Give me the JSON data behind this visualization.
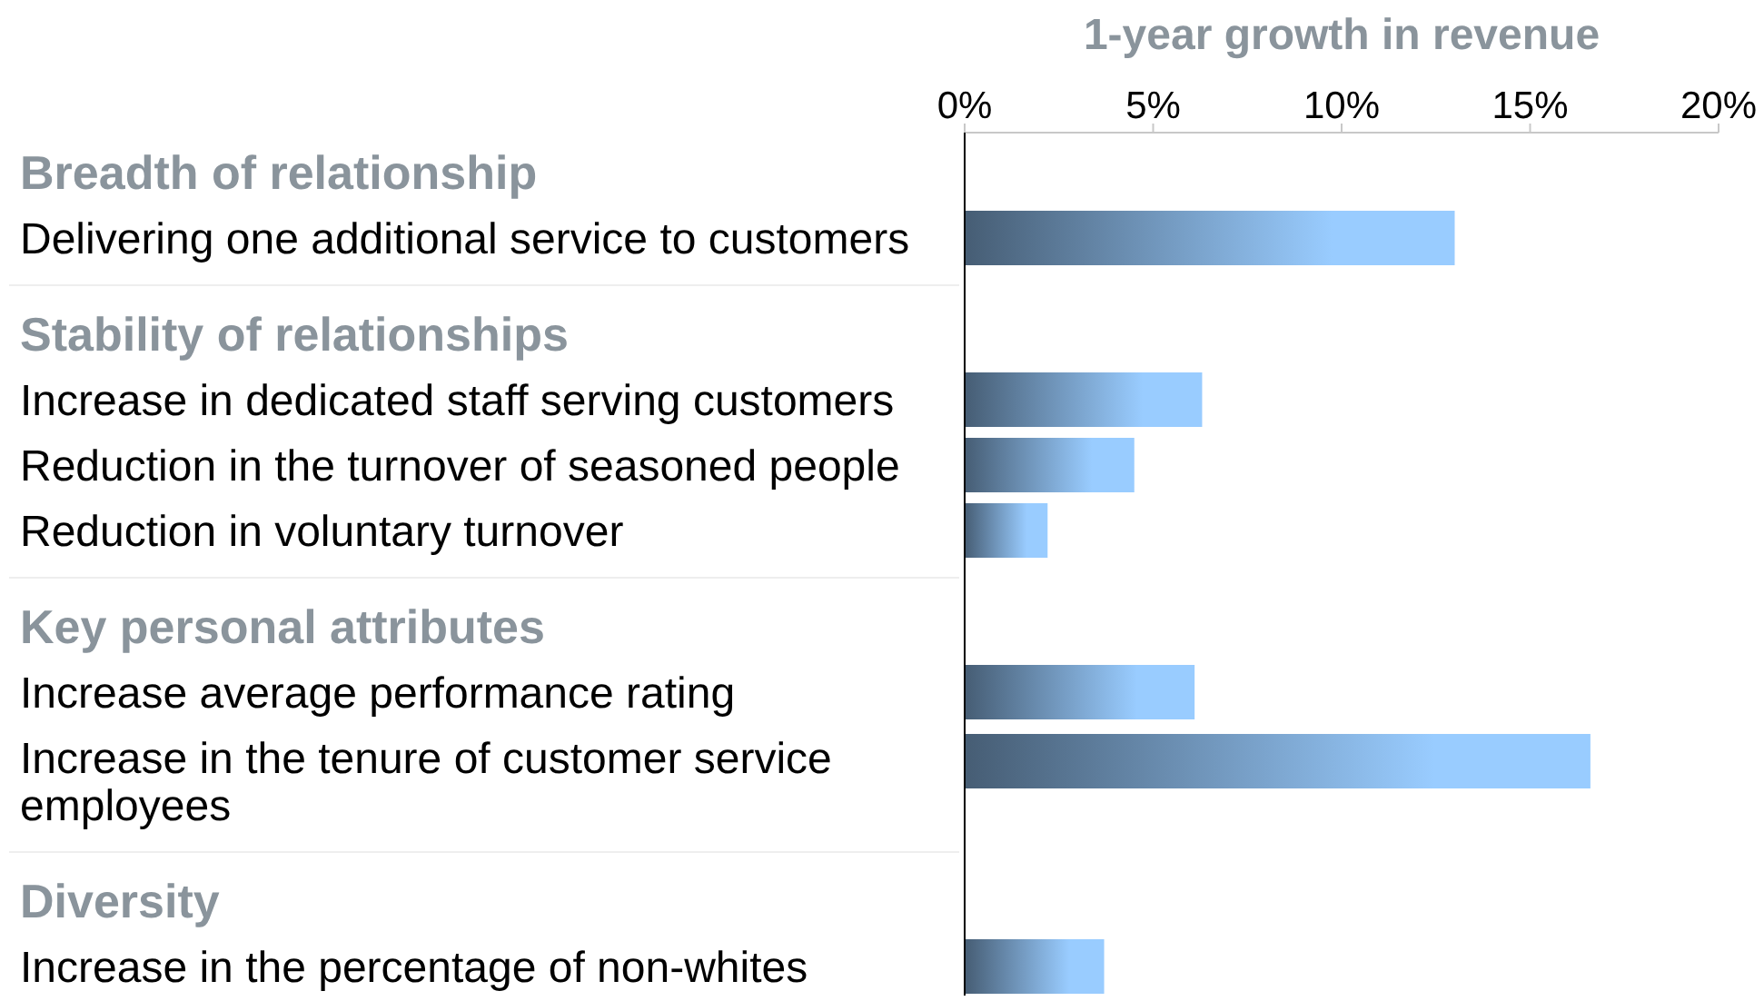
{
  "chart_data": {
    "type": "bar",
    "orientation": "horizontal",
    "xlabel": "1-year growth in revenue",
    "categories": [
      "Breadth of relationship",
      "Delivering one additional service to customers",
      "Stability of relationships",
      "Increase in dedicated staff serving customers",
      "Reduction in the turnover of seasoned people",
      "Reduction in voluntary turnover",
      "Key personal attributes",
      "Increase average performance rating",
      "Increase in the tenure of customer service employees",
      "Diversity",
      "Increase in the percentage of non-whites"
    ],
    "values": [
      null,
      13.0,
      null,
      6.3,
      4.5,
      2.2,
      null,
      6.1,
      16.6,
      null,
      3.7
    ],
    "color": "#99ccff",
    "xlim": [
      0,
      20
    ],
    "xticks": [
      {
        "value": 0,
        "label": "0%"
      },
      {
        "value": 5,
        "label": "5%"
      },
      {
        "value": 10,
        "label": "10%"
      },
      {
        "value": 15,
        "label": "15%"
      },
      {
        "value": 20,
        "label": "20%"
      }
    ],
    "grid": false
  }
}
